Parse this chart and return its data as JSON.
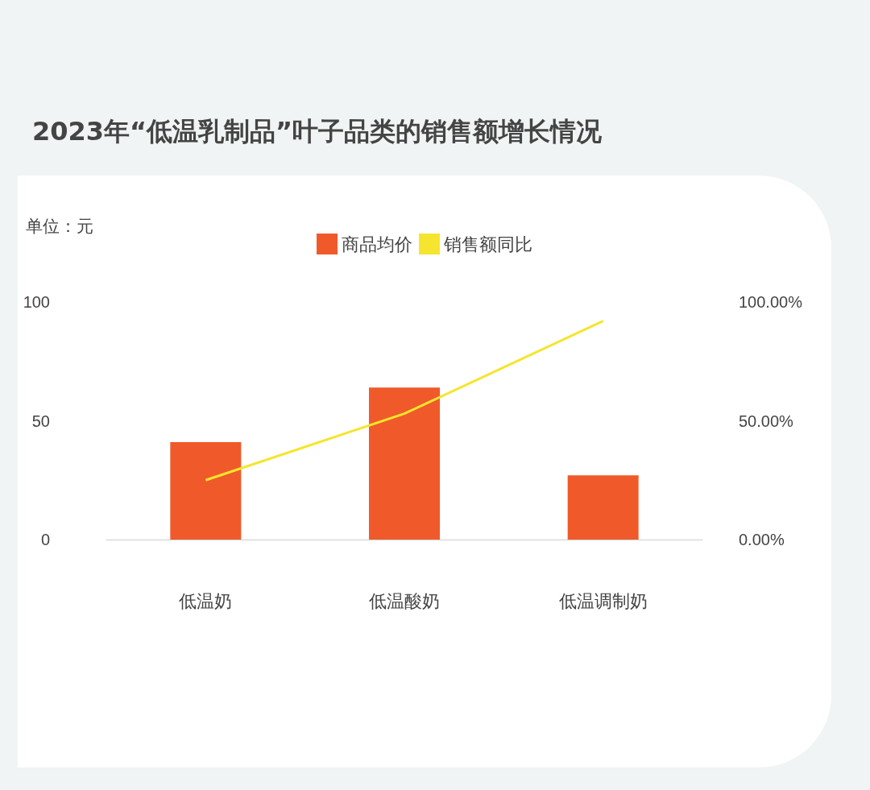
{
  "chart_data": {
    "type": "bar",
    "title": "2023年“低温乳制品”叶子品类的销售额增长情况",
    "ylabel": "单位：元",
    "categories": [
      "低温奶",
      "低温酸奶",
      "低温调制奶"
    ],
    "series": [
      {
        "name": "商品均价",
        "color": "#f05a2a",
        "values": [
          41,
          64,
          27
        ]
      },
      {
        "name": "销售额同比",
        "type": "line",
        "axis": "y2",
        "color": "#f5e52e",
        "values": [
          25,
          53,
          92
        ]
      }
    ],
    "ylim": [
      0,
      100
    ],
    "yticks": [
      0,
      50,
      100
    ],
    "y2lim": [
      0,
      100
    ],
    "y2ticks": [
      {
        "value": 0,
        "label": "0.00%"
      },
      {
        "value": 50,
        "label": "50.00%"
      },
      {
        "value": 100,
        "label": "100.00%"
      }
    ],
    "legend": "top",
    "grid": false,
    "marker": "none",
    "line_style": "solid"
  }
}
